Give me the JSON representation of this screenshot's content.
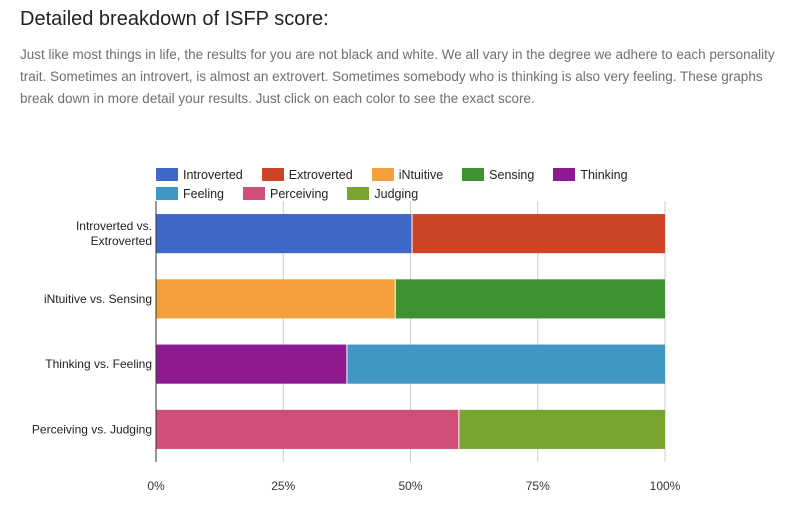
{
  "page": {
    "title": "Detailed breakdown of ISFP score:",
    "intro": "Just like most things in life, the results for you are not black and white. We all vary in the degree we adhere to each personality trait. Sometimes an introvert, is almost an extrovert. Sometimes somebody who is thinking is also very feeling. These graphs break down in more detail your results. Just click on each color to see the exact score."
  },
  "chart_data": {
    "type": "bar",
    "orientation": "horizontal",
    "stacked": true,
    "categories": [
      "Introverted vs. Extroverted",
      "iNtuitive vs. Sensing",
      "Thinking vs. Feeling",
      "Perceiving vs. Judging"
    ],
    "category_lines": [
      [
        "Introverted vs.",
        "Extroverted"
      ],
      [
        "iNtuitive vs. Sensing"
      ],
      [
        "Thinking vs. Feeling"
      ],
      [
        "Perceiving vs. Judging"
      ]
    ],
    "series": [
      {
        "name": "Introverted",
        "color": "#3f66c9",
        "values": [
          50.3,
          0,
          0,
          0
        ]
      },
      {
        "name": "Extroverted",
        "color": "#cd4525",
        "values": [
          49.7,
          0,
          0,
          0
        ]
      },
      {
        "name": "iNtuitive",
        "color": "#f4a03c",
        "values": [
          0,
          47,
          0,
          0
        ]
      },
      {
        "name": "Sensing",
        "color": "#3d9330",
        "values": [
          0,
          53,
          0,
          0
        ]
      },
      {
        "name": "Thinking",
        "color": "#8e1a92",
        "values": [
          0,
          0,
          37.5,
          0
        ]
      },
      {
        "name": "Feeling",
        "color": "#4097c3",
        "values": [
          0,
          0,
          62.5,
          0
        ]
      },
      {
        "name": "Perceiving",
        "color": "#cf4f79",
        "values": [
          0,
          0,
          0,
          59.5
        ]
      },
      {
        "name": "Judging",
        "color": "#78a52f",
        "values": [
          0,
          0,
          0,
          40.5
        ]
      }
    ],
    "x_ticks": [
      "0%",
      "25%",
      "50%",
      "75%",
      "100%"
    ],
    "x_tick_values": [
      0,
      25,
      50,
      75,
      100
    ],
    "xlim": [
      0,
      100
    ],
    "grid": true,
    "legend_position": "top"
  }
}
